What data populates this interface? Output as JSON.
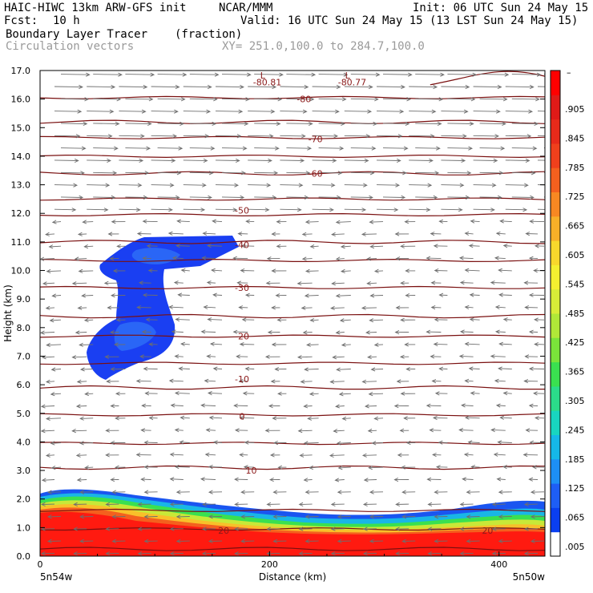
{
  "header": {
    "model": "HAIC-HIWC 13km ARW-GFS init",
    "org": "NCAR/MMM",
    "init": "Init: 06 UTC Sun 24 May 15",
    "fcst_label": "Fcst:",
    "fcst_value": "10 h",
    "valid": "Valid: 16 UTC Sun 24 May 15 (13 LST Sun 24 May 15)",
    "field": "Boundary Layer Tracer",
    "units": "(fraction)",
    "vectors": "Circulation vectors",
    "xsection": "XY= 251.0,100.0 to 284.7,100.0"
  },
  "axes": {
    "ylabel": "Height (km)",
    "xlabel": "Distance (km)",
    "yticks": [
      "0.0",
      "1.0",
      "2.0",
      "3.0",
      "4.0",
      "5.0",
      "6.0",
      "7.0",
      "8.0",
      "9.0",
      "10.0",
      "11.0",
      "12.0",
      "13.0",
      "14.0",
      "15.0",
      "16.0",
      "17.0"
    ],
    "xticks": [
      "0",
      "200",
      "400"
    ],
    "left_end": "5n54w",
    "right_end": "5n50w",
    "ylim": [
      0,
      17
    ],
    "xlim": [
      0,
      440
    ]
  },
  "colorbar": {
    "labels": [
      ".005",
      ".065",
      ".125",
      ".185",
      ".245",
      ".305",
      ".365",
      ".425",
      ".485",
      ".545",
      ".605",
      ".665",
      ".725",
      ".785",
      ".845",
      ".905"
    ],
    "colors": [
      "#ffffff",
      "#0a3ff0",
      "#1e5ef5",
      "#1d8ff5",
      "#15b8e8",
      "#18d5c0",
      "#2bdc8a",
      "#3ae050",
      "#7ae43a",
      "#b0e838",
      "#d8ec38",
      "#f4f030",
      "#f8d82c",
      "#f8b028",
      "#f88822",
      "#f4601e",
      "#f0401c",
      "#e82a1a",
      "#e01a18",
      "#ff0000"
    ],
    "top_label": "–"
  },
  "chart_data": {
    "type": "contour-cross-section",
    "isotherm_labels": [
      {
        "text": "-80.81",
        "x": 99,
        "y": 16.6
      },
      {
        "text": "-80.77",
        "x": 136,
        "y": 16.6
      },
      {
        "text": "-80",
        "x": 115,
        "y": 16.0
      },
      {
        "text": "-70",
        "x": 120,
        "y": 14.6
      },
      {
        "text": "-60",
        "x": 120,
        "y": 13.4
      },
      {
        "text": "-50",
        "x": 88,
        "y": 12.1
      },
      {
        "text": "-40",
        "x": 88,
        "y": 10.9
      },
      {
        "text": "-30",
        "x": 88,
        "y": 9.4
      },
      {
        "text": "-20",
        "x": 88,
        "y": 7.7
      },
      {
        "text": "-10",
        "x": 88,
        "y": 6.2
      },
      {
        "text": "0",
        "x": 88,
        "y": 4.9
      },
      {
        "text": "10",
        "x": 92,
        "y": 3.0
      },
      {
        "text": "20",
        "x": 80,
        "y": 0.9
      },
      {
        "text": "20",
        "x": 195,
        "y": 0.9
      }
    ],
    "low_markers": [
      {
        "text": "L",
        "x": 97,
        "y": 17.0
      },
      {
        "text": "L",
        "x": 134,
        "y": 17.0
      }
    ]
  }
}
